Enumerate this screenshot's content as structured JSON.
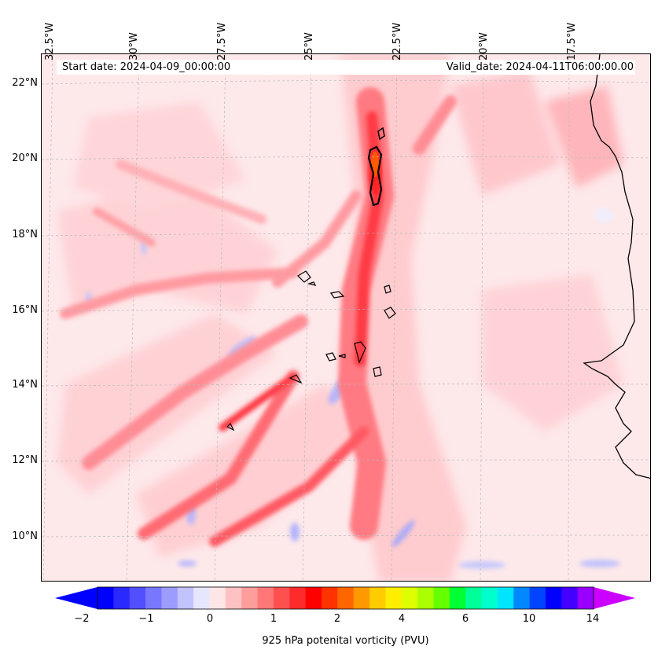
{
  "map": {
    "start_date": "Start date: 2024-04-09_00:00:00",
    "valid_date": "Valid_date: 2024-04-11T06:00:00.00",
    "lat_labels": [
      "22°N",
      "20°N",
      "18°N",
      "16°N",
      "14°N",
      "12°N",
      "10°N"
    ],
    "lon_labels": [
      "32.5°W",
      "30°W",
      "27.5°W",
      "25°W",
      "22.5°W",
      "20°W",
      "17.5°W"
    ],
    "background_color": "#fde8ea"
  },
  "colorbar": {
    "label": "925 hPa potenital vorticity (PVU)",
    "tick_labels": [
      "−2",
      "−1",
      "0",
      "1",
      "2",
      "4",
      "6",
      "10",
      "14"
    ],
    "colors": [
      "#0000ff",
      "#2a2aff",
      "#5050ff",
      "#7777ff",
      "#9c9cff",
      "#c2c2ff",
      "#e6e6ff",
      "#ffe6e6",
      "#ffc2c2",
      "#ff9c9c",
      "#ff7777",
      "#ff5050",
      "#ff2a2a",
      "#ff0000",
      "#ff3300",
      "#ff6600",
      "#ff9900",
      "#ffcc00",
      "#ffee00",
      "#ddff00",
      "#aaff00",
      "#66ff00",
      "#00ff33",
      "#00ff99",
      "#00ffcc",
      "#00e5ff",
      "#0088ff",
      "#0044ff",
      "#0000ff",
      "#4400ff",
      "#9900ff"
    ],
    "extend_left_color": "#0000ff",
    "extend_right_color": "#cc00ff"
  }
}
